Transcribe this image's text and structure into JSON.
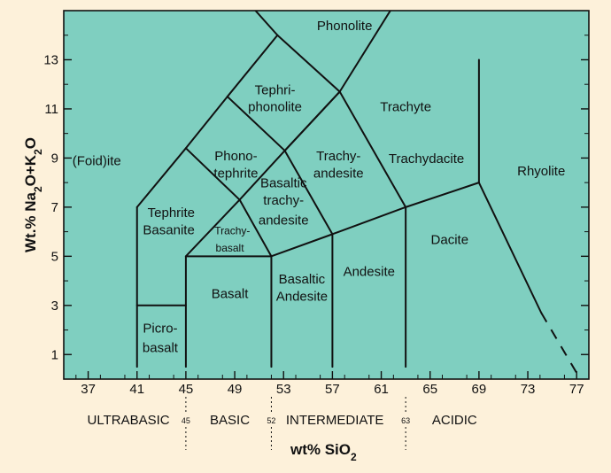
{
  "chart_data": {
    "type": "diagram",
    "xlabel_main": "wt% SiO",
    "xlabel_sub": "2",
    "ylabel_parts": [
      "Wt.% Na",
      "2",
      "O+K",
      "2",
      "O"
    ],
    "xlim": [
      35,
      78
    ],
    "ylim": [
      0,
      15
    ],
    "xticks": [
      "37",
      "41",
      "45",
      "49",
      "53",
      "57",
      "61",
      "65",
      "69",
      "73",
      "77"
    ],
    "yticks": [
      "1",
      "3",
      "5",
      "7",
      "9",
      "11",
      "13"
    ],
    "colors": {
      "plot_bg": "#7fcfc0",
      "page_bg": "#fdf1da",
      "line": "#111111"
    },
    "boundaries": [
      [
        [
          41,
          0.5
        ],
        [
          41,
          7
        ]
      ],
      [
        [
          41,
          7
        ],
        [
          45,
          9.4
        ]
      ],
      [
        [
          45,
          9.4
        ],
        [
          48.4,
          11.5
        ]
      ],
      [
        [
          48.4,
          11.5
        ],
        [
          52.5,
          14
        ]
      ],
      [
        [
          52.5,
          14
        ],
        [
          49.8,
          15.5
        ]
      ],
      [
        [
          41,
          3
        ],
        [
          45,
          3
        ]
      ],
      [
        [
          45,
          0.5
        ],
        [
          45,
          5
        ]
      ],
      [
        [
          45,
          5
        ],
        [
          52,
          5
        ]
      ],
      [
        [
          45,
          5
        ],
        [
          49.4,
          7.3
        ]
      ],
      [
        [
          49.4,
          7.3
        ],
        [
          52,
          5
        ]
      ],
      [
        [
          45,
          9.4
        ],
        [
          49.4,
          7.3
        ]
      ],
      [
        [
          49.4,
          7.3
        ],
        [
          53.1,
          9.3
        ]
      ],
      [
        [
          53.1,
          9.3
        ],
        [
          57.6,
          11.7
        ]
      ],
      [
        [
          57.6,
          11.7
        ],
        [
          63,
          16
        ]
      ],
      [
        [
          48.4,
          11.5
        ],
        [
          53.1,
          9.3
        ]
      ],
      [
        [
          53.1,
          9.3
        ],
        [
          57.6,
          11.7
        ]
      ],
      [
        [
          57.6,
          11.7
        ],
        [
          52.5,
          14
        ]
      ],
      [
        [
          52,
          0.5
        ],
        [
          52,
          5
        ]
      ],
      [
        [
          52,
          5
        ],
        [
          57,
          5.9
        ]
      ],
      [
        [
          57,
          5.9
        ],
        [
          53.1,
          9.3
        ]
      ],
      [
        [
          57,
          0.5
        ],
        [
          57,
          5.9
        ]
      ],
      [
        [
          57,
          5.9
        ],
        [
          63,
          7
        ]
      ],
      [
        [
          63,
          7
        ],
        [
          57.6,
          11.7
        ]
      ],
      [
        [
          63,
          0.5
        ],
        [
          63,
          7
        ]
      ],
      [
        [
          63,
          7
        ],
        [
          69,
          8
        ]
      ],
      [
        [
          69,
          8
        ],
        [
          69,
          13
        ]
      ],
      [
        [
          69,
          8
        ],
        [
          74.1,
          2.7
        ]
      ]
    ],
    "dashed_boundary": [
      [
        74.1,
        2.7
      ],
      [
        77.3,
        0
      ]
    ],
    "fields": [
      {
        "name": "(Foid)ite",
        "x": 37.7,
        "y": 8.7
      },
      {
        "name": "Phonolite",
        "x": 58,
        "y": 14.2
      },
      {
        "name": "Tephri-",
        "x": 52.3,
        "y": 11.6
      },
      {
        "name": "phonolite",
        "x": 52.3,
        "y": 10.9
      },
      {
        "name": "Trachyte",
        "x": 63,
        "y": 10.9
      },
      {
        "name": "Phono-",
        "x": 49.1,
        "y": 8.9
      },
      {
        "name": "tephrite",
        "x": 49.1,
        "y": 8.2
      },
      {
        "name": "Trachy-",
        "x": 57.5,
        "y": 8.9
      },
      {
        "name": "andesite",
        "x": 57.5,
        "y": 8.2
      },
      {
        "name": "Trachydacite",
        "x": 64.7,
        "y": 8.8
      },
      {
        "name": "Rhyolite",
        "x": 74.1,
        "y": 8.3
      },
      {
        "name": "Basaltic",
        "x": 53,
        "y": 7.8
      },
      {
        "name": "trachy-",
        "x": 53,
        "y": 7.1
      },
      {
        "name": "andesite",
        "x": 53,
        "y": 6.3
      },
      {
        "name": "Tephrite",
        "x": 43.8,
        "y": 6.6
      },
      {
        "name": "Basanite",
        "x": 43.6,
        "y": 5.9
      },
      {
        "name": "Trachy-",
        "x": 48.8,
        "y": 5.9,
        "small": true
      },
      {
        "name": "basalt",
        "x": 48.6,
        "y": 5.2,
        "small": true
      },
      {
        "name": "Basalt",
        "x": 48.6,
        "y": 3.3
      },
      {
        "name": "Basaltic",
        "x": 54.5,
        "y": 3.9
      },
      {
        "name": "Andesite",
        "x": 54.5,
        "y": 3.2
      },
      {
        "name": "Andesite",
        "x": 60,
        "y": 4.2
      },
      {
        "name": "Dacite",
        "x": 66.6,
        "y": 5.5
      },
      {
        "name": "Picro-",
        "x": 42.9,
        "y": 1.9
      },
      {
        "name": "basalt",
        "x": 42.9,
        "y": 1.1
      }
    ],
    "classes": [
      {
        "name": "ULTRABASIC",
        "x": 40.3
      },
      {
        "name": "BASIC",
        "x": 48.6
      },
      {
        "name": "INTERMEDIATE",
        "x": 57.2
      },
      {
        "name": "ACIDIC",
        "x": 67
      }
    ],
    "class_dividers": [
      {
        "label": "45",
        "x": 45
      },
      {
        "label": "52",
        "x": 52
      },
      {
        "label": "63",
        "x": 63
      }
    ]
  }
}
